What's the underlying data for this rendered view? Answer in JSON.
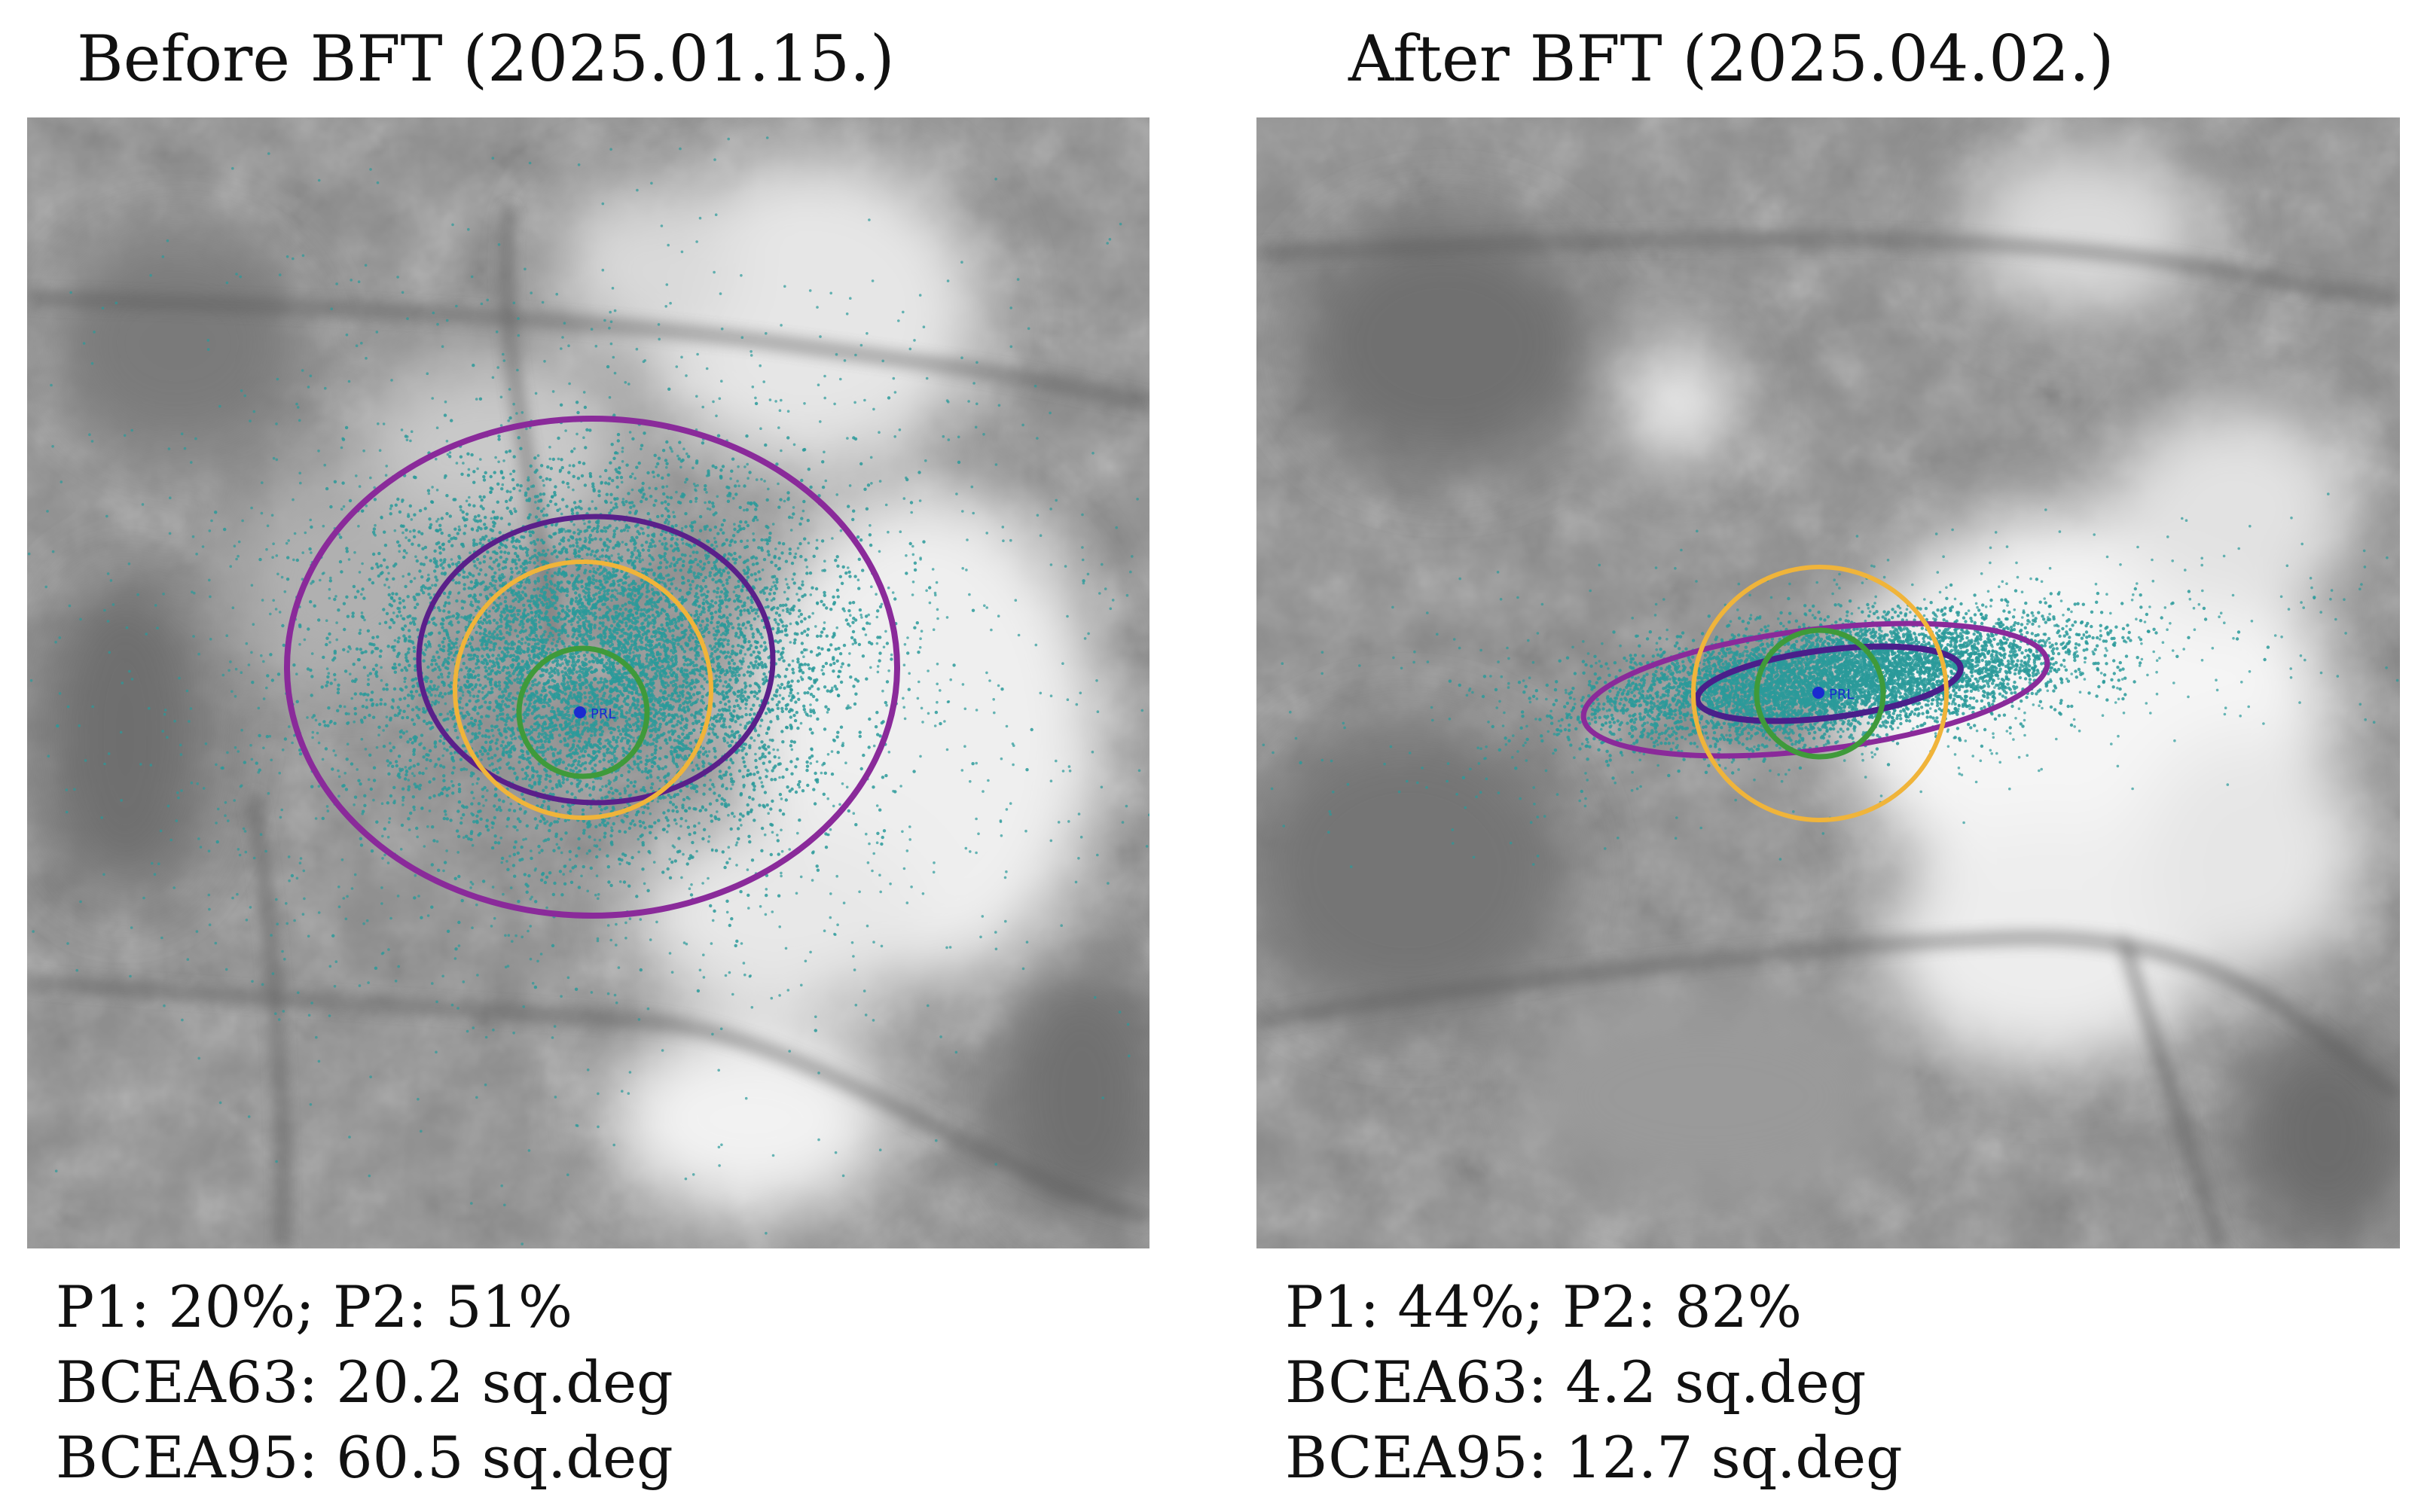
{
  "panels": {
    "before": {
      "title": "Before BFT (2025.01.15.)",
      "prl_label": "PRL",
      "stats": {
        "p_line": "P1: 20%; P2: 51%",
        "bcea63": "BCEA63: 20.2 sq.deg",
        "bcea95": "BCEA95: 60.5 sq.deg"
      }
    },
    "after": {
      "title": "After BFT (2025.04.02.)",
      "prl_label": "PRL",
      "stats": {
        "p_line": "P1: 44%; P2: 82%",
        "bcea63": "BCEA63: 4.2 sq.deg",
        "bcea95": "BCEA95: 12.7 sq.deg"
      }
    }
  },
  "colors": {
    "fixation_points": "#2a9a9a",
    "bcea_ellipse": "#8a2a9a",
    "circle_2deg": "#3f9a3a",
    "circle_4deg": "#f0b43a",
    "prl_marker": "#1a2ad0"
  }
}
